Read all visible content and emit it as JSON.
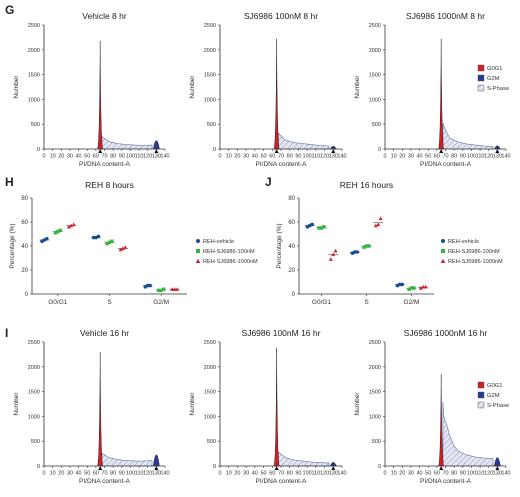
{
  "panels": {
    "G": "G",
    "H": "H",
    "J": "J",
    "I": "I"
  },
  "colors": {
    "g0g1": "#d21f26",
    "g2m": "#2a3c8f",
    "s_phase": "#b6bdd6",
    "vehicle": "#1a4c8e",
    "dmso100": "#36b53c",
    "dmso1000": "#d32433",
    "axis": "#333333"
  },
  "chart_data": [
    {
      "id": "g1",
      "type": "area",
      "title": "Vehicle 8 hr",
      "xlabel": "PI/DNA content-A",
      "ylabel": "Number",
      "xlim": [
        0,
        140
      ],
      "ylim": [
        0,
        2500
      ],
      "xticks": [
        0,
        10,
        20,
        30,
        40,
        50,
        60,
        70,
        80,
        90,
        100,
        110,
        120,
        130,
        140
      ],
      "yticks": [
        0,
        500,
        1000,
        1500,
        2000,
        2500
      ],
      "g1_peak": {
        "x": 65,
        "height": 2180
      },
      "g2_peak": {
        "x": 130,
        "height": 180
      },
      "s_phase": {
        "x": [
          67,
          75,
          85,
          95,
          105,
          115,
          125
        ],
        "y": [
          250,
          150,
          110,
          90,
          80,
          75,
          80
        ]
      },
      "legend": []
    },
    {
      "id": "g2",
      "type": "area",
      "title": "SJ6986 100nM 8 hr",
      "xlabel": "PI/DNA content-A",
      "ylabel": "Number",
      "xlim": [
        0,
        140
      ],
      "ylim": [
        0,
        2500
      ],
      "xticks": [
        0,
        10,
        20,
        30,
        40,
        50,
        60,
        70,
        80,
        90,
        100,
        110,
        120,
        130,
        140
      ],
      "yticks": [
        0,
        500,
        1000,
        1500,
        2000,
        2500
      ],
      "g1_peak": {
        "x": 65,
        "height": 2220
      },
      "g2_peak": {
        "x": 130,
        "height": 60
      },
      "s_phase": {
        "x": [
          67,
          75,
          85,
          95,
          105,
          115,
          125
        ],
        "y": [
          320,
          180,
          130,
          110,
          90,
          70,
          60
        ]
      },
      "legend": []
    },
    {
      "id": "g3",
      "type": "area",
      "title": "SJ6986 1000nM 8 hr",
      "xlabel": "PI/DNA content-A",
      "ylabel": "Number",
      "xlim": [
        0,
        140
      ],
      "ylim": [
        0,
        2500
      ],
      "xticks": [
        0,
        10,
        20,
        30,
        40,
        50,
        60,
        70,
        80,
        90,
        100,
        110,
        120,
        130,
        140
      ],
      "yticks": [
        0,
        500,
        1000,
        1500,
        2000,
        2500
      ],
      "g1_peak": {
        "x": 65,
        "height": 2220
      },
      "g2_peak": {
        "x": 130,
        "height": 70
      },
      "s_phase": {
        "x": [
          67,
          70,
          75,
          85,
          95,
          105,
          115,
          125
        ],
        "y": [
          520,
          380,
          220,
          140,
          100,
          80,
          60,
          50
        ]
      },
      "legend": [
        "G0G1",
        "G2M",
        "S-Phase"
      ]
    },
    {
      "id": "h",
      "type": "scatter",
      "title": "REH 8 hours",
      "xlabel": "",
      "ylabel": "Percentage (%)",
      "ylim": [
        0,
        80
      ],
      "yticks": [
        0,
        20,
        40,
        60,
        80
      ],
      "categories": [
        "G0/G1",
        "S",
        "G2/M"
      ],
      "series": [
        {
          "name": "REH-vehicle",
          "marker": "circle",
          "values": [
            [
              44,
              45,
              46
            ],
            [
              47,
              47,
              48
            ],
            [
              6,
              7,
              7
            ]
          ]
        },
        {
          "name": "REH-SJ6986-100nM",
          "marker": "square",
          "values": [
            [
              51,
              52,
              53
            ],
            [
              42,
              43,
              44
            ],
            [
              3,
              3,
              4
            ]
          ]
        },
        {
          "name": "REH-SJ6986-1000nM",
          "marker": "triangle",
          "values": [
            [
              56,
              57,
              58
            ],
            [
              37,
              38,
              39
            ],
            [
              4,
              4,
              4
            ]
          ]
        }
      ]
    },
    {
      "id": "j",
      "type": "scatter",
      "title": "REH 16 hours",
      "xlabel": "",
      "ylabel": "Percentage (%)",
      "ylim": [
        0,
        80
      ],
      "yticks": [
        0,
        20,
        40,
        60,
        80
      ],
      "categories": [
        "G0/G1",
        "S",
        "G2/M"
      ],
      "series": [
        {
          "name": "REH-vehicle",
          "marker": "circle",
          "values": [
            [
              56,
              57,
              58
            ],
            [
              34,
              35,
              35
            ],
            [
              7,
              8,
              8
            ]
          ]
        },
        {
          "name": "REH-SJ6986-100nM",
          "marker": "square",
          "values": [
            [
              55,
              55,
              56
            ],
            [
              39,
              40,
              40
            ],
            [
              4,
              5,
              5
            ]
          ]
        },
        {
          "name": "REH-SJ6986-1000nM",
          "marker": "triangle",
          "values": [
            [
              29,
              33,
              36
            ],
            [
              57,
              58,
              63
            ],
            [
              5,
              6,
              6
            ]
          ]
        }
      ]
    },
    {
      "id": "i1",
      "type": "area",
      "title": "Vehicle 16 hr",
      "xlabel": "PI/DNA content-A",
      "ylabel": "Number",
      "xlim": [
        0,
        140
      ],
      "ylim": [
        0,
        2500
      ],
      "xticks": [
        0,
        10,
        20,
        30,
        40,
        50,
        60,
        70,
        80,
        90,
        100,
        110,
        120,
        130,
        140
      ],
      "yticks": [
        0,
        500,
        1000,
        1500,
        2000,
        2500
      ],
      "g1_peak": {
        "x": 65,
        "height": 2300
      },
      "g2_peak": {
        "x": 130,
        "height": 240
      },
      "s_phase": {
        "x": [
          67,
          75,
          85,
          95,
          105,
          115,
          125
        ],
        "y": [
          260,
          170,
          130,
          110,
          100,
          100,
          110
        ]
      },
      "legend": []
    },
    {
      "id": "i2",
      "type": "area",
      "title": "SJ6986 100nM 16 hr",
      "xlabel": "PI/DNA content-A",
      "ylabel": "Number",
      "xlim": [
        0,
        140
      ],
      "ylim": [
        0,
        2500
      ],
      "xticks": [
        0,
        10,
        20,
        30,
        40,
        50,
        60,
        70,
        80,
        90,
        100,
        110,
        120,
        130,
        140
      ],
      "yticks": [
        0,
        500,
        1000,
        1500,
        2000,
        2500
      ],
      "g1_peak": {
        "x": 65,
        "height": 2380
      },
      "g2_peak": {
        "x": 130,
        "height": 80
      },
      "s_phase": {
        "x": [
          67,
          75,
          85,
          95,
          105,
          115,
          125
        ],
        "y": [
          280,
          170,
          120,
          100,
          80,
          70,
          60
        ]
      },
      "legend": []
    },
    {
      "id": "i3",
      "type": "area",
      "title": "SJ6986 1000nM 16 hr",
      "xlabel": "PI/DNA content-A",
      "ylabel": "Number",
      "xlim": [
        0,
        140
      ],
      "ylim": [
        0,
        2500
      ],
      "xticks": [
        0,
        10,
        20,
        30,
        40,
        50,
        60,
        70,
        80,
        90,
        100,
        110,
        120,
        130,
        140
      ],
      "yticks": [
        0,
        500,
        1000,
        1500,
        2000,
        2500
      ],
      "g1_peak": {
        "x": 65,
        "height": 1850
      },
      "g2_peak": {
        "x": 130,
        "height": 180
      },
      "s_phase": {
        "x": [
          67,
          68,
          70,
          72,
          75,
          80,
          85,
          95,
          105,
          115,
          125
        ],
        "y": [
          1300,
          1000,
          900,
          800,
          600,
          400,
          300,
          220,
          180,
          160,
          150
        ]
      },
      "legend": [
        "G0G1",
        "G2M",
        "S-Phase"
      ]
    }
  ]
}
